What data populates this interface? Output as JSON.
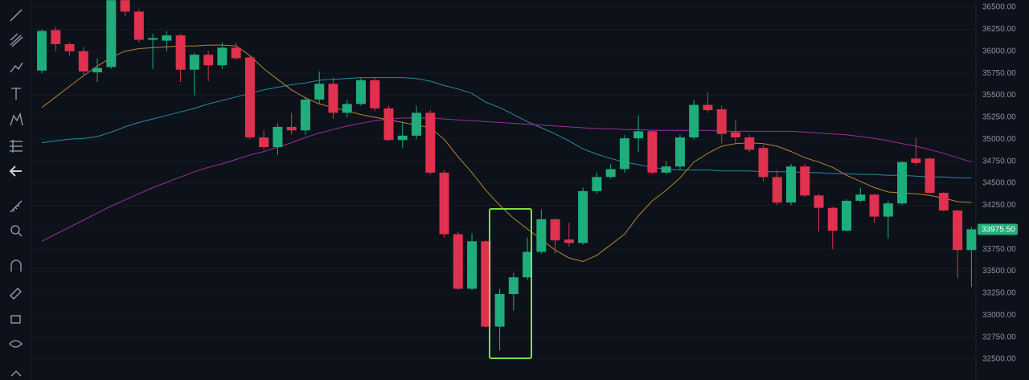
{
  "chart_data": {
    "type": "candlestick",
    "open": [
      35780,
      36240,
      36080,
      36000,
      35760,
      35820,
      36580,
      36450,
      36130,
      36120,
      36180,
      35790,
      35960,
      35840,
      36040,
      35930,
      35020,
      34910,
      35140,
      35100,
      35450,
      35630,
      35300,
      35400,
      35670,
      35350,
      34990,
      35040,
      35300,
      34620,
      33920,
      33300,
      33840,
      32870,
      33240,
      33430,
      33720,
      34090,
      33860,
      33820,
      34410,
      34570,
      34660,
      35010,
      35090,
      34620,
      34690,
      35020,
      35390,
      35340,
      35080,
      35020,
      34900,
      34570,
      34280,
      34690,
      34360,
      34220,
      33960,
      34300,
      34370,
      34120,
      34270,
      34780,
      34780,
      34390,
      34190,
      33740
    ],
    "high": [
      36250,
      36280,
      36100,
      36050,
      35920,
      36580,
      36580,
      36480,
      36200,
      36230,
      36200,
      35980,
      36000,
      36100,
      36100,
      35950,
      35100,
      35180,
      35300,
      35480,
      35770,
      35700,
      35450,
      35700,
      35700,
      35380,
      35200,
      35380,
      35330,
      34650,
      33950,
      33930,
      33850,
      33300,
      33480,
      33880,
      34200,
      34100,
      34050,
      34450,
      34620,
      34720,
      35050,
      35270,
      35100,
      34750,
      35050,
      35450,
      35530,
      35380,
      35220,
      35050,
      34930,
      34650,
      34720,
      34720,
      34380,
      34230,
      34320,
      34450,
      34380,
      34300,
      34750,
      35020,
      34790,
      34400,
      34200,
      34000
    ],
    "low": [
      35750,
      36000,
      35950,
      35730,
      35650,
      35800,
      36400,
      36100,
      35800,
      36000,
      35650,
      35500,
      35660,
      35800,
      35900,
      35000,
      34880,
      34820,
      35050,
      35050,
      35400,
      35230,
      35250,
      35380,
      35320,
      34980,
      34900,
      35000,
      34600,
      33880,
      33290,
      33280,
      32860,
      32600,
      33050,
      33400,
      33700,
      33700,
      33780,
      33800,
      34380,
      34550,
      34620,
      34850,
      34600,
      34600,
      34650,
      35000,
      35300,
      34950,
      34950,
      34850,
      34520,
      34250,
      34250,
      34340,
      33950,
      33750,
      33950,
      34280,
      34050,
      33870,
      34250,
      34700,
      34380,
      34180,
      33420,
      33320
    ],
    "close": [
      36230,
      36080,
      36000,
      35770,
      35810,
      36580,
      36450,
      36130,
      36150,
      36180,
      35790,
      35960,
      35840,
      36040,
      35920,
      35020,
      34910,
      35140,
      35100,
      35450,
      35630,
      35300,
      35400,
      35670,
      35350,
      34990,
      35040,
      35300,
      34620,
      33920,
      33300,
      33840,
      32870,
      33240,
      33430,
      33720,
      34090,
      33850,
      33820,
      34410,
      34570,
      34660,
      35010,
      35090,
      34620,
      34690,
      35020,
      35390,
      35330,
      35060,
      35020,
      34880,
      34570,
      34280,
      34690,
      34360,
      34220,
      33960,
      34300,
      34370,
      34120,
      34270,
      34740,
      34730,
      34390,
      34190,
      33740,
      33975.5
    ],
    "up_color": "#1fae7b",
    "down_color": "#e0314f",
    "moving_averages": [
      {
        "color": "#b8862e",
        "values": [
          35360,
          35480,
          35600,
          35720,
          35830,
          35930,
          36000,
          36030,
          36040,
          36050,
          36060,
          36060,
          36070,
          36070,
          36060,
          35950,
          35800,
          35680,
          35560,
          35470,
          35400,
          35360,
          35320,
          35280,
          35250,
          35220,
          35190,
          35160,
          35130,
          35000,
          34800,
          34620,
          34420,
          34250,
          34100,
          33980,
          33860,
          33740,
          33650,
          33610,
          33680,
          33800,
          33920,
          34130,
          34300,
          34420,
          34560,
          34740,
          34840,
          34920,
          34950,
          34960,
          34950,
          34920,
          34860,
          34790,
          34740,
          34680,
          34590,
          34520,
          34450,
          34400,
          34390,
          34380,
          34360,
          34330,
          34290,
          34280
        ]
      },
      {
        "color": "#2a8aa0",
        "values": [
          34960,
          34980,
          35000,
          35010,
          35030,
          35080,
          35140,
          35190,
          35230,
          35270,
          35310,
          35350,
          35400,
          35440,
          35480,
          35520,
          35560,
          35590,
          35620,
          35640,
          35670,
          35680,
          35690,
          35700,
          35700,
          35700,
          35700,
          35690,
          35660,
          35610,
          35570,
          35520,
          35420,
          35360,
          35280,
          35200,
          35130,
          35060,
          34980,
          34890,
          34830,
          34780,
          34740,
          34710,
          34680,
          34660,
          34650,
          34650,
          34650,
          34640,
          34640,
          34640,
          34630,
          34630,
          34630,
          34620,
          34620,
          34610,
          34610,
          34600,
          34600,
          34590,
          34590,
          34580,
          34570,
          34570,
          34560,
          34560
        ]
      },
      {
        "color": "#9b2f9e",
        "values": [
          33840,
          33920,
          34000,
          34080,
          34160,
          34240,
          34310,
          34380,
          34450,
          34510,
          34570,
          34630,
          34680,
          34720,
          34770,
          34820,
          34860,
          34910,
          34960,
          35020,
          35070,
          35110,
          35150,
          35180,
          35210,
          35230,
          35240,
          35240,
          35240,
          35230,
          35220,
          35210,
          35200,
          35190,
          35180,
          35170,
          35160,
          35150,
          35140,
          35130,
          35120,
          35120,
          35110,
          35110,
          35100,
          35100,
          35100,
          35100,
          35100,
          35090,
          35090,
          35090,
          35090,
          35090,
          35090,
          35080,
          35070,
          35060,
          35050,
          35030,
          35010,
          34980,
          34950,
          34920,
          34880,
          34840,
          34790,
          34740
        ]
      }
    ],
    "ylim": [
      32263,
      36582
    ],
    "yticks": [
      {
        "value": 32500,
        "label": "32500.00"
      },
      {
        "value": 32750,
        "label": "32750.00"
      },
      {
        "value": 33000,
        "label": "33000.00"
      },
      {
        "value": 33250,
        "label": "33250.00"
      },
      {
        "value": 33500,
        "label": "33500.00"
      },
      {
        "value": 33750,
        "label": "33750.00"
      },
      {
        "value": 34000,
        "label": "34000.00"
      },
      {
        "value": 34250,
        "label": "34250.00"
      },
      {
        "value": 34500,
        "label": "34500.00"
      },
      {
        "value": 34750,
        "label": "34750.00"
      },
      {
        "value": 35000,
        "label": "35000.00"
      },
      {
        "value": 35250,
        "label": "35250.00"
      },
      {
        "value": 35500,
        "label": "35500.00"
      },
      {
        "value": 35750,
        "label": "35750.00"
      },
      {
        "value": 36000,
        "label": "36000.00"
      },
      {
        "value": 36250,
        "label": "36250.00"
      },
      {
        "value": 36500,
        "label": "36500.00"
      }
    ],
    "grid": true,
    "price_tag": {
      "value": 33975.5,
      "label": "33975.50",
      "color": "#1fae7b"
    }
  }
}
